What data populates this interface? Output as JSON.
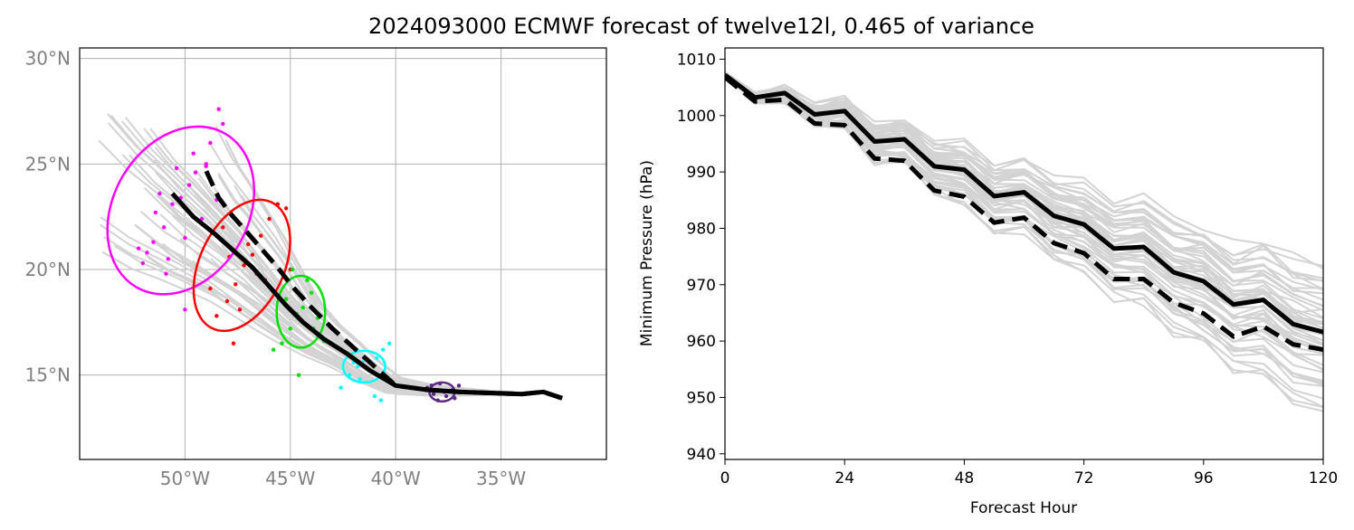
{
  "figure": {
    "title": "2024093000 ECMWF forecast of twelve12l, 0.465 of variance"
  },
  "colors": {
    "ensemble": "#d3d3d3",
    "mean": "#000000",
    "geo_tick_label": "#808080",
    "grid": "#b0b0b0",
    "ellipses": [
      "#ff00ff",
      "#ff0000",
      "#00e000",
      "#00ffff",
      "#5b2a86"
    ]
  },
  "chart_data": [
    {
      "type": "scatter",
      "title": "",
      "xlabel": "",
      "ylabel": "",
      "xlim": [
        -55,
        -30
      ],
      "ylim": [
        11,
        30.5
      ],
      "grid": true,
      "x_ticks": [
        -50,
        -45,
        -40,
        -35
      ],
      "x_tick_labels": [
        "50°W",
        "45°W",
        "40°W",
        "35°W"
      ],
      "y_ticks": [
        15,
        20,
        25,
        30
      ],
      "y_tick_labels": [
        "15°N",
        "20°N",
        "25°N",
        "30°N"
      ],
      "mean_track": {
        "lon": [
          -32.1,
          -33.0,
          -34.0,
          -35.5,
          -37.0,
          -38.5,
          -40.0,
          -41.2,
          -42.3,
          -43.4,
          -44.4,
          -45.2,
          -46.0,
          -46.8,
          -47.7,
          -48.6,
          -49.6,
          -50.6
        ],
        "lat": [
          13.9,
          14.2,
          14.1,
          14.15,
          14.2,
          14.3,
          14.5,
          15.2,
          16.0,
          16.7,
          17.5,
          18.3,
          19.2,
          20.1,
          20.9,
          21.7,
          22.5,
          23.6
        ]
      },
      "deterministic_track": {
        "lon": [
          -32.1,
          -33.0,
          -34.0,
          -35.5,
          -37.0,
          -38.5,
          -40.0,
          -41.0,
          -42.0,
          -43.0,
          -44.0,
          -44.9,
          -45.6,
          -46.3,
          -47.0,
          -47.8,
          -48.4,
          -49.1
        ],
        "lat": [
          13.9,
          14.2,
          14.1,
          14.15,
          14.2,
          14.3,
          14.5,
          15.4,
          16.3,
          17.2,
          18.2,
          19.2,
          20.1,
          20.9,
          21.7,
          22.6,
          23.4,
          24.9
        ]
      },
      "uncertainty_ellipses": [
        {
          "center": [
            -50.2,
            22.8
          ],
          "lon_radius": 3.2,
          "lat_radius": 4.2,
          "rotation_deg": 30
        },
        {
          "center": [
            -47.3,
            20.2
          ],
          "lon_radius": 2.0,
          "lat_radius": 3.3,
          "rotation_deg": 25
        },
        {
          "center": [
            -44.5,
            18.0
          ],
          "lon_radius": 1.15,
          "lat_radius": 1.7,
          "rotation_deg": 0
        },
        {
          "center": [
            -41.5,
            15.4
          ],
          "lon_radius": 1.0,
          "lat_radius": 0.75,
          "rotation_deg": 0
        },
        {
          "center": [
            -37.8,
            14.2
          ],
          "lon_radius": 0.6,
          "lat_radius": 0.45,
          "rotation_deg": 0
        }
      ],
      "ensemble_positions": {
        "magenta": {
          "lon": [
            -52.0,
            -51.5,
            -51.0,
            -50.6,
            -50.2,
            -49.8,
            -49.5,
            -49.0,
            -48.8,
            -48.4,
            -50.9,
            -51.8,
            -50.0,
            -49.2,
            -48.5,
            -50.4,
            -51.2,
            -49.6,
            -52.2,
            -48.2,
            -50.0,
            -49.0,
            -51.4,
            -50.8
          ],
          "lat": [
            20.3,
            21.3,
            22.0,
            23.1,
            23.4,
            24.0,
            24.6,
            25.0,
            26.0,
            27.6,
            19.8,
            20.8,
            21.5,
            22.4,
            23.3,
            24.8,
            23.6,
            25.5,
            21.0,
            26.9,
            18.1,
            24.9,
            22.7,
            20.5
          ]
        },
        "red": {
          "lon": [
            -48.5,
            -48.0,
            -47.6,
            -47.2,
            -46.8,
            -46.4,
            -46.0,
            -45.6,
            -45.2,
            -48.8,
            -47.0,
            -46.6,
            -47.9,
            -47.4,
            -45.0,
            -48.2,
            -46.2,
            -47.7
          ],
          "lat": [
            17.8,
            18.5,
            19.3,
            20.2,
            20.7,
            21.6,
            22.4,
            23.1,
            22.9,
            19.1,
            21.2,
            19.8,
            20.6,
            18.1,
            20.0,
            22.0,
            19.5,
            16.5
          ]
        },
        "green": {
          "lon": [
            -45.4,
            -45.0,
            -44.7,
            -44.4,
            -44.0,
            -43.7,
            -43.4,
            -45.8,
            -44.2,
            -44.9,
            -43.9,
            -45.2,
            -44.6
          ],
          "lat": [
            16.5,
            17.2,
            17.9,
            18.2,
            18.9,
            17.7,
            16.6,
            16.2,
            19.5,
            20.0,
            17.2,
            18.6,
            15.0
          ]
        },
        "cyan": {
          "lon": [
            -42.6,
            -42.2,
            -41.8,
            -41.5,
            -41.2,
            -40.9,
            -40.6,
            -40.3,
            -41.0,
            -41.7,
            -42.0,
            -40.7
          ],
          "lat": [
            14.4,
            15.0,
            15.4,
            15.7,
            15.2,
            15.8,
            16.2,
            16.5,
            14.0,
            14.8,
            15.6,
            13.8
          ]
        },
        "purple": {
          "lon": [
            -38.5,
            -38.2,
            -37.9,
            -37.6,
            -37.3,
            -37.0,
            -38.0,
            -37.7,
            -38.3,
            -37.2
          ],
          "lat": [
            14.4,
            14.1,
            14.6,
            14.0,
            14.3,
            14.5,
            13.8,
            14.2,
            14.5,
            13.9
          ]
        }
      }
    },
    {
      "type": "line",
      "title": "",
      "xlabel": "Forecast Hour",
      "ylabel": "Minimum Pressure (hPa)",
      "xlim": [
        0,
        120
      ],
      "ylim": [
        939,
        1012
      ],
      "x_ticks": [
        0,
        24,
        48,
        72,
        96,
        120
      ],
      "y_ticks": [
        940,
        950,
        960,
        970,
        980,
        990,
        1000,
        1010
      ],
      "x": [
        0,
        6,
        12,
        18,
        24,
        30,
        36,
        42,
        48,
        54,
        60,
        66,
        72,
        78,
        84,
        90,
        96,
        102,
        108,
        114,
        120
      ],
      "series": [
        {
          "style": "mean",
          "values": [
            1007.2,
            1003.2,
            1004.0,
            1000.2,
            1000.8,
            995.4,
            995.8,
            991.0,
            990.4,
            985.7,
            986.4,
            982.2,
            980.7,
            976.4,
            976.7,
            972.2,
            970.6,
            966.5,
            967.3,
            963.0,
            961.6
          ]
        },
        {
          "style": "deterministic",
          "values": [
            1006.8,
            1002.5,
            1002.8,
            998.6,
            998.3,
            992.4,
            992.0,
            986.7,
            985.6,
            981.0,
            981.9,
            977.4,
            975.6,
            971.0,
            971.0,
            966.8,
            964.9,
            960.8,
            962.6,
            959.4,
            958.5
          ]
        }
      ]
    }
  ]
}
